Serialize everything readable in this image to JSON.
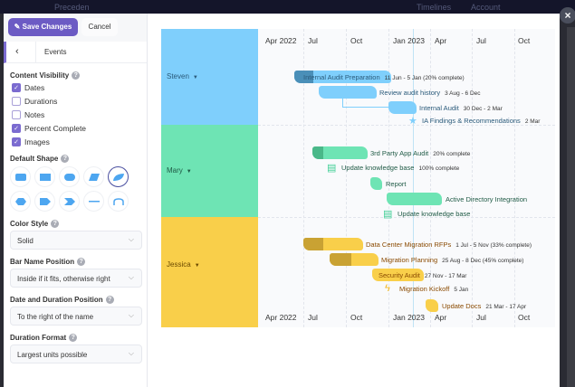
{
  "topbar": {
    "brand": "Preceden",
    "timelines": "Timelines",
    "account": "Account"
  },
  "close_label": "×",
  "sidebar": {
    "save_label": "Save Changes",
    "cancel_label": "Cancel",
    "tab": "Events",
    "content_visibility": {
      "title": "Content Visibility",
      "items": [
        {
          "label": "Dates",
          "checked": true
        },
        {
          "label": "Durations",
          "checked": false
        },
        {
          "label": "Notes",
          "checked": false
        },
        {
          "label": "Percent Complete",
          "checked": true
        },
        {
          "label": "Images",
          "checked": true
        }
      ]
    },
    "default_shape": {
      "title": "Default Shape",
      "selected": "leaf"
    },
    "color_style": {
      "title": "Color Style",
      "value": "Solid"
    },
    "bar_name_position": {
      "title": "Bar Name Position",
      "value": "Inside if it fits, otherwise right"
    },
    "date_duration_position": {
      "title": "Date and Duration Position",
      "value": "To the right of the name"
    },
    "duration_format": {
      "title": "Duration Format",
      "value": "Largest units possible"
    }
  },
  "timeline": {
    "months": [
      "Apr 2022",
      "Jul",
      "Oct",
      "Jan 2023",
      "Apr",
      "Jul",
      "Oct"
    ],
    "colors": {
      "steven": "#7fcffc",
      "mary": "#6ee4b4",
      "jessica": "#f9cf4a"
    },
    "lanes": [
      {
        "name": "Steven",
        "events": [
          {
            "name": "Internal Audit Preparation",
            "dates": "11 Jun - 5 Jan (20% complete)",
            "percent": 20
          },
          {
            "name": "Review audit history",
            "dates": "3 Aug - 6 Dec"
          },
          {
            "name": "Internal Audit",
            "dates": "30 Dec - 2 Mar"
          },
          {
            "name": "IA Findings & Recommendations",
            "dates": "2 Mar",
            "icon": "star-icon"
          }
        ]
      },
      {
        "name": "Mary",
        "events": [
          {
            "name": "3rd Party App Audit",
            "dates": "20% complete",
            "percent": 20
          },
          {
            "name": "Update knowledge base",
            "dates": "100% complete",
            "icon": "book-icon"
          },
          {
            "name": "Report",
            "dates": ""
          },
          {
            "name": "Active Directory Integration",
            "dates": ""
          },
          {
            "name": "Update knowledge base",
            "dates": "",
            "icon": "book-icon"
          }
        ]
      },
      {
        "name": "Jessica",
        "events": [
          {
            "name": "Data Center Migration RFPs",
            "dates": "1 Jul - 5 Nov (33% complete)",
            "percent": 33
          },
          {
            "name": "Migration Planning",
            "dates": "25 Aug - 8 Dec (45% complete)",
            "percent": 45
          },
          {
            "name": "Security Audit",
            "dates": "27 Nov - 17 Mar"
          },
          {
            "name": "Migration Kickoff",
            "dates": "5 Jan",
            "icon": "lightning-icon"
          },
          {
            "name": "Update Docs",
            "dates": "21 Mar - 17 Apr"
          }
        ]
      }
    ]
  }
}
